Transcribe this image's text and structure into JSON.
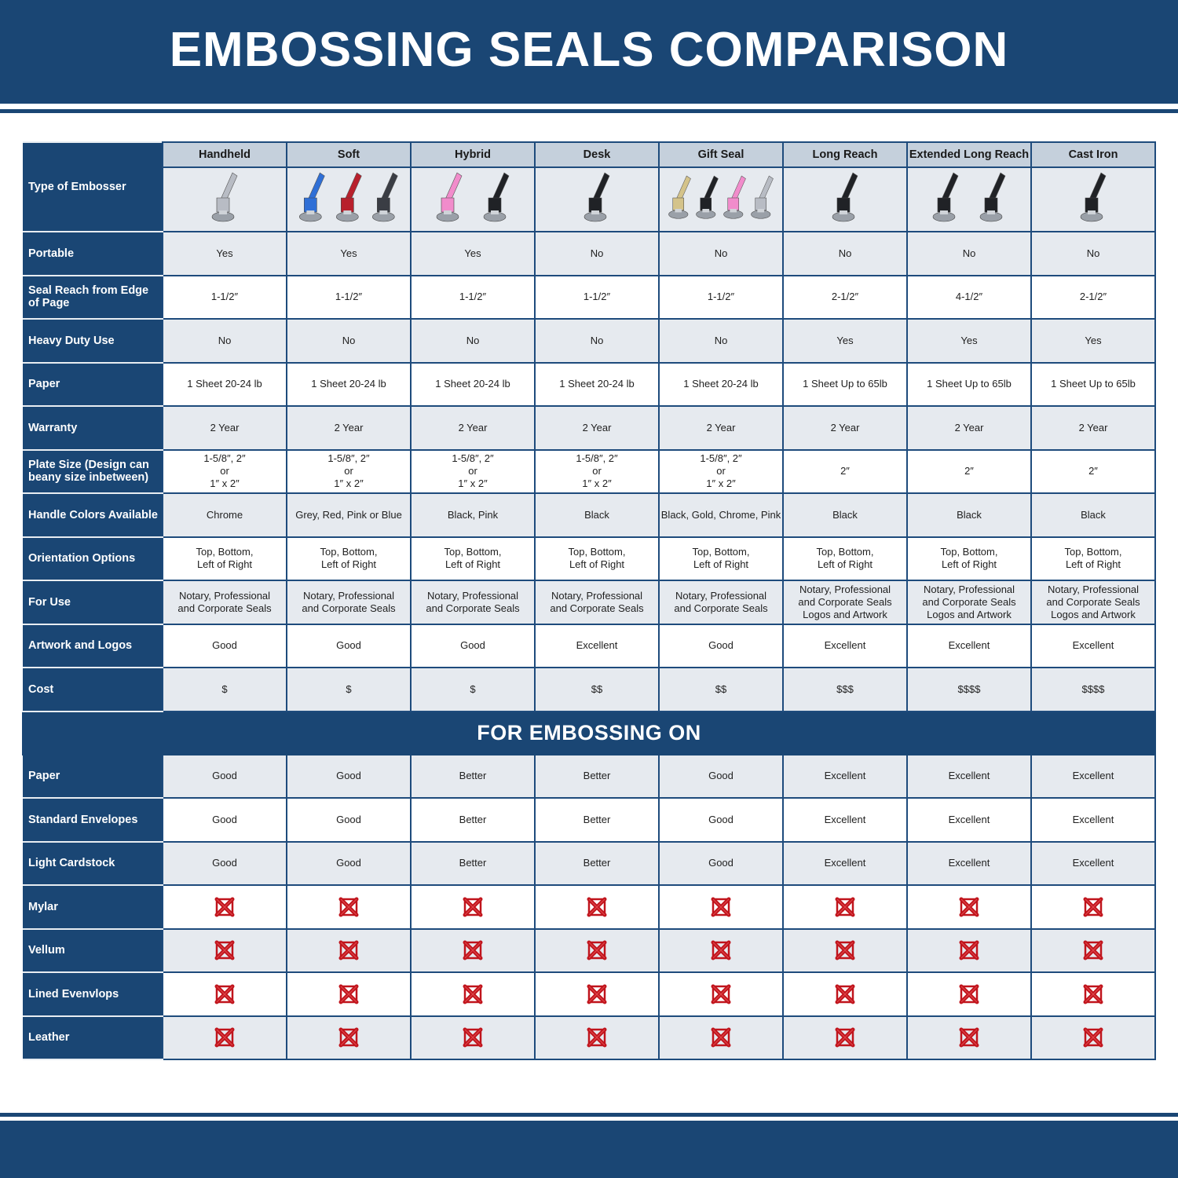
{
  "title": "EMBOSSING SEALS COMPARISON",
  "colors": {
    "brand": "#1a4674",
    "header_gray": "#c5d0dc",
    "row_gray": "#e6eaef",
    "x_red": "#c0141c"
  },
  "columns": [
    {
      "name": "Handheld",
      "image_colors": [
        "#b8bcc4"
      ]
    },
    {
      "name": "Soft",
      "image_colors": [
        "#2f6fd6",
        "#b8202c",
        "#3a3d44"
      ]
    },
    {
      "name": "Hybrid",
      "image_colors": [
        "#f18ccb",
        "#202226"
      ]
    },
    {
      "name": "Desk",
      "image_colors": [
        "#202226"
      ]
    },
    {
      "name": "Gift Seal",
      "image_colors": [
        "#d4c38a",
        "#202226",
        "#f18ccb",
        "#b8bcc4"
      ]
    },
    {
      "name": "Long Reach",
      "image_colors": [
        "#202226"
      ]
    },
    {
      "name": "Extended Long Reach",
      "image_colors": [
        "#202226",
        "#202226"
      ]
    },
    {
      "name": "Cast Iron",
      "image_colors": [
        "#202226"
      ]
    }
  ],
  "type_label": "Type of Embosser",
  "rows": [
    {
      "label": "Portable",
      "values": [
        "Yes",
        "Yes",
        "Yes",
        "No",
        "No",
        "No",
        "No",
        "No"
      ]
    },
    {
      "label": "Seal Reach from Edge of Page",
      "values": [
        "1-1/2″",
        "1-1/2″",
        "1-1/2″",
        "1-1/2″",
        "1-1/2″",
        "2-1/2″",
        "4-1/2″",
        "2-1/2″"
      ]
    },
    {
      "label": "Heavy Duty Use",
      "values": [
        "No",
        "No",
        "No",
        "No",
        "No",
        "Yes",
        "Yes",
        "Yes"
      ]
    },
    {
      "label": "Paper",
      "values": [
        "1 Sheet 20-24 lb",
        "1 Sheet 20-24 lb",
        "1 Sheet 20-24 lb",
        "1 Sheet 20-24 lb",
        "1 Sheet 20-24 lb",
        "1 Sheet Up to 65lb",
        "1 Sheet Up to 65lb",
        "1 Sheet Up to 65lb"
      ]
    },
    {
      "label": "Warranty",
      "values": [
        "2 Year",
        "2 Year",
        "2 Year",
        "2 Year",
        "2 Year",
        "2 Year",
        "2 Year",
        "2 Year"
      ]
    },
    {
      "label": "Plate Size (Design can beany size inbetween)",
      "values": [
        "1-5/8″, 2″\nor\n1″ x 2″",
        "1-5/8″, 2″\nor\n1″ x 2″",
        "1-5/8″, 2″\nor\n1″ x 2″",
        "1-5/8″, 2″\nor\n1″ x 2″",
        "1-5/8″, 2″\nor\n1″ x 2″",
        "2″",
        "2″",
        "2″"
      ]
    },
    {
      "label": "Handle Colors Available",
      "values": [
        "Chrome",
        "Grey, Red, Pink or Blue",
        "Black, Pink",
        "Black",
        "Black, Gold, Chrome, Pink",
        "Black",
        "Black",
        "Black"
      ]
    },
    {
      "label": "Orientation Options",
      "values": [
        "Top, Bottom,\nLeft of Right",
        "Top, Bottom,\nLeft of Right",
        "Top, Bottom,\nLeft of Right",
        "Top, Bottom,\nLeft of Right",
        "Top, Bottom,\nLeft of Right",
        "Top, Bottom,\nLeft of Right",
        "Top, Bottom,\nLeft of Right",
        "Top, Bottom,\nLeft of Right"
      ]
    },
    {
      "label": "For Use",
      "values": [
        "Notary, Professional\nand Corporate Seals",
        "Notary, Professional\nand Corporate Seals",
        "Notary, Professional\nand Corporate Seals",
        "Notary, Professional\nand Corporate Seals",
        "Notary, Professional\nand Corporate Seals",
        "Notary, Professional\nand Corporate Seals\nLogos and Artwork",
        "Notary, Professional\nand Corporate Seals\nLogos and Artwork",
        "Notary, Professional\nand Corporate Seals\nLogos and Artwork"
      ]
    },
    {
      "label": "Artwork and Logos",
      "values": [
        "Good",
        "Good",
        "Good",
        "Excellent",
        "Good",
        "Excellent",
        "Excellent",
        "Excellent"
      ]
    },
    {
      "label": "Cost",
      "values": [
        "$",
        "$",
        "$",
        "$$",
        "$$",
        "$$$",
        "$$$$",
        "$$$$"
      ]
    }
  ],
  "section_title": "FOR EMBOSSING ON",
  "embossing_rows": [
    {
      "label": "Paper",
      "values": [
        "Good",
        "Good",
        "Better",
        "Better",
        "Good",
        "Excellent",
        "Excellent",
        "Excellent"
      ]
    },
    {
      "label": "Standard Envelopes",
      "values": [
        "Good",
        "Good",
        "Better",
        "Better",
        "Good",
        "Excellent",
        "Excellent",
        "Excellent"
      ]
    },
    {
      "label": "Light Cardstock",
      "values": [
        "Good",
        "Good",
        "Better",
        "Better",
        "Good",
        "Excellent",
        "Excellent",
        "Excellent"
      ]
    },
    {
      "label": "Mylar",
      "values": [
        "x",
        "x",
        "x",
        "x",
        "x",
        "x",
        "x",
        "x"
      ]
    },
    {
      "label": "Vellum",
      "values": [
        "x",
        "x",
        "x",
        "x",
        "x",
        "x",
        "x",
        "x"
      ]
    },
    {
      "label": "Lined Evenvlops",
      "values": [
        "x",
        "x",
        "x",
        "x",
        "x",
        "x",
        "x",
        "x"
      ]
    },
    {
      "label": "Leather",
      "values": [
        "x",
        "x",
        "x",
        "x",
        "x",
        "x",
        "x",
        "x"
      ]
    }
  ]
}
